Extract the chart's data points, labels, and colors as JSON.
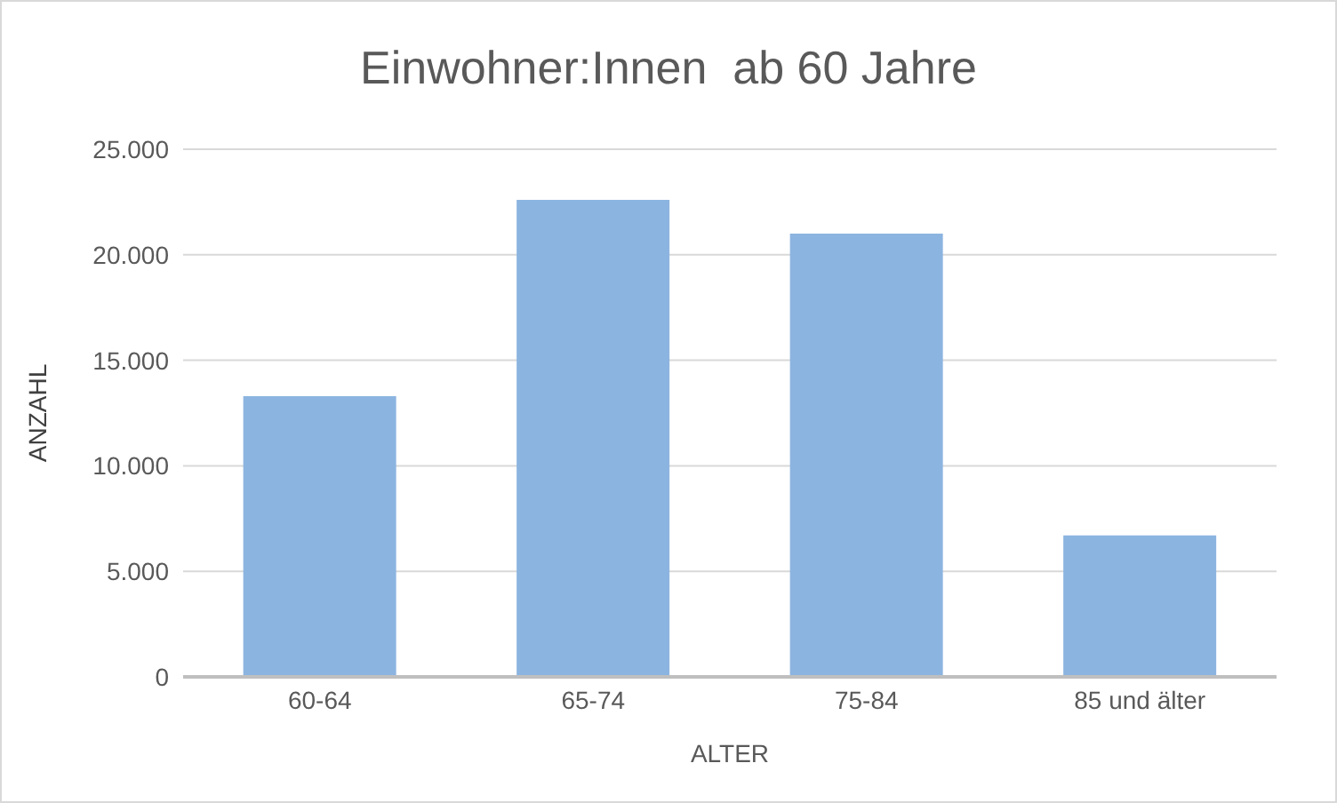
{
  "chart_data": {
    "type": "bar",
    "title": "Einwohner:Innen  ab 60 Jahre",
    "xlabel": "ALTER",
    "ylabel": "ANZAHL",
    "categories": [
      "60-64",
      "65-74",
      "75-84",
      "85 und älter"
    ],
    "values": [
      13300,
      22600,
      21000,
      6700
    ],
    "color": "#8cb4e0",
    "ylim": [
      0,
      25000
    ],
    "yticks": [
      {
        "value": 0,
        "label": "0"
      },
      {
        "value": 5000,
        "label": "5.000"
      },
      {
        "value": 10000,
        "label": "10.000"
      },
      {
        "value": 15000,
        "label": "15.000"
      },
      {
        "value": 20000,
        "label": "20.000"
      },
      {
        "value": 25000,
        "label": "25.000"
      }
    ],
    "grid": "y"
  }
}
